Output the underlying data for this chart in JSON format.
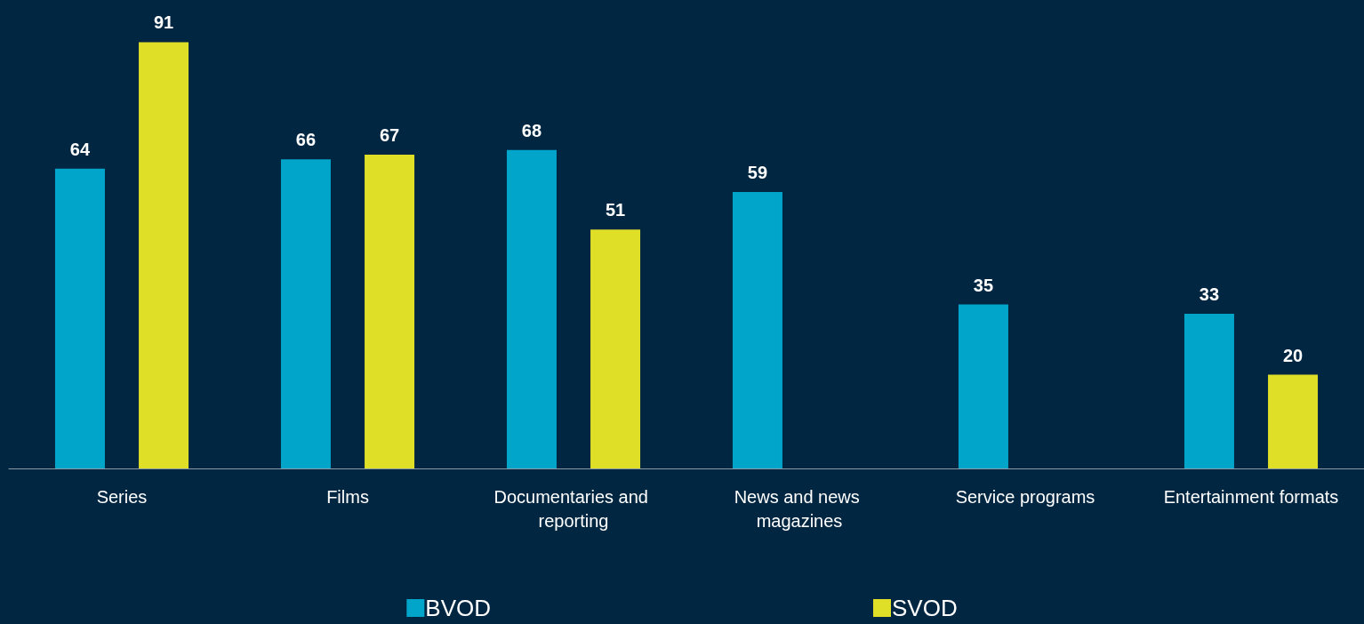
{
  "chart_data": {
    "type": "bar",
    "categories": [
      "Series",
      "Films",
      "Documentaries and reporting",
      "News and news magazines",
      "Service programs",
      "Entertainment formats"
    ],
    "series": [
      {
        "name": "BVOD",
        "color": "#00a5c9",
        "values": [
          64,
          66,
          68,
          59,
          35,
          33
        ]
      },
      {
        "name": "SVOD",
        "color": "#dfdf28",
        "values": [
          91,
          67,
          51,
          null,
          null,
          20
        ]
      }
    ],
    "data_labels": true,
    "legend": "bottom"
  }
}
